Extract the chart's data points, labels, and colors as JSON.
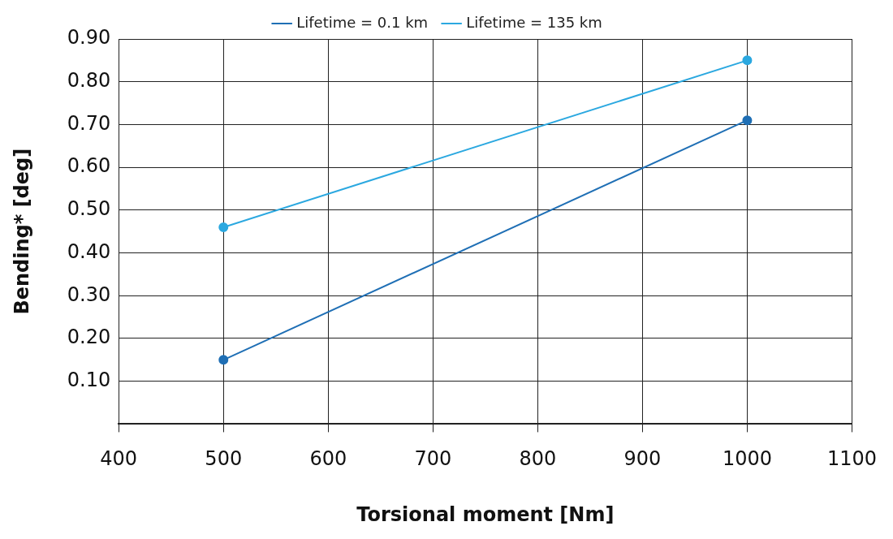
{
  "chart_data": {
    "type": "line",
    "xlabel": "Torsional moment [Nm]",
    "ylabel": "Bending* [deg]",
    "x": [
      500,
      1000
    ],
    "series": [
      {
        "name": "Lifetime = 0.1 km",
        "color": "#1f6fb5",
        "values": [
          0.15,
          0.71
        ]
      },
      {
        "name": "Lifetime = 135 km",
        "color": "#2ba8e0",
        "values": [
          0.46,
          0.85
        ]
      }
    ],
    "xlim": [
      400,
      1100
    ],
    "xticks": [
      400,
      500,
      600,
      700,
      800,
      900,
      1000,
      1100
    ],
    "ylim": [
      0,
      0.9
    ],
    "yticks": [
      {
        "value": 0,
        "label": null
      },
      {
        "value": 0.1,
        "label": "0.10"
      },
      {
        "value": 0.2,
        "label": "0.20"
      },
      {
        "value": 0.3,
        "label": "0.30"
      },
      {
        "value": 0.4,
        "label": "0.40"
      },
      {
        "value": 0.5,
        "label": "0.50"
      },
      {
        "value": 0.6,
        "label": "0.60"
      },
      {
        "value": 0.7,
        "label": "0.70"
      },
      {
        "value": 0.8,
        "label": "0.80"
      },
      {
        "value": 0.9,
        "label": "0.90"
      }
    ],
    "grid": true,
    "legend": "top",
    "marker": "circle",
    "line_style": "solid"
  }
}
